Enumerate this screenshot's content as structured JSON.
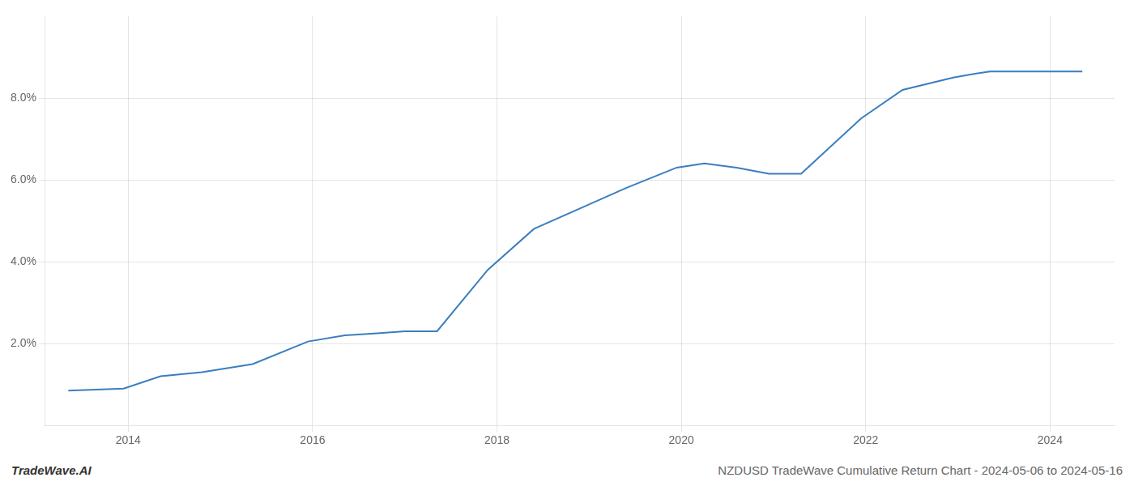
{
  "chart_data": {
    "type": "line",
    "x": [
      2013.35,
      2013.95,
      2014.35,
      2014.8,
      2015.35,
      2015.95,
      2016.35,
      2016.7,
      2017.0,
      2017.35,
      2017.9,
      2018.4,
      2018.9,
      2019.4,
      2019.95,
      2020.25,
      2020.6,
      2020.95,
      2021.3,
      2021.95,
      2022.4,
      2022.95,
      2023.2,
      2023.35,
      2023.95,
      2024.35
    ],
    "values": [
      0.0085,
      0.009,
      0.012,
      0.013,
      0.015,
      0.0205,
      0.022,
      0.0225,
      0.023,
      0.023,
      0.038,
      0.048,
      0.053,
      0.058,
      0.063,
      0.064,
      0.063,
      0.0615,
      0.0615,
      0.075,
      0.082,
      0.085,
      0.086,
      0.0865,
      0.0865,
      0.0865
    ],
    "color": "#3a7ebf",
    "xlim": [
      2013.1,
      2024.7
    ],
    "xticks": [
      2014,
      2016,
      2018,
      2020,
      2022,
      2024
    ],
    "ylim": [
      0.0,
      0.1
    ],
    "yticks": [
      {
        "value": 0.02,
        "label": "2.0%"
      },
      {
        "value": 0.04,
        "label": "4.0%"
      },
      {
        "value": 0.06,
        "label": "6.0%"
      },
      {
        "value": 0.08,
        "label": "8.0%"
      }
    ],
    "grid": true,
    "annotations": [
      "TradeWave.AI",
      "NZDUSD TradeWave Cumulative Return Chart - 2024-05-06 to 2024-05-16"
    ]
  }
}
